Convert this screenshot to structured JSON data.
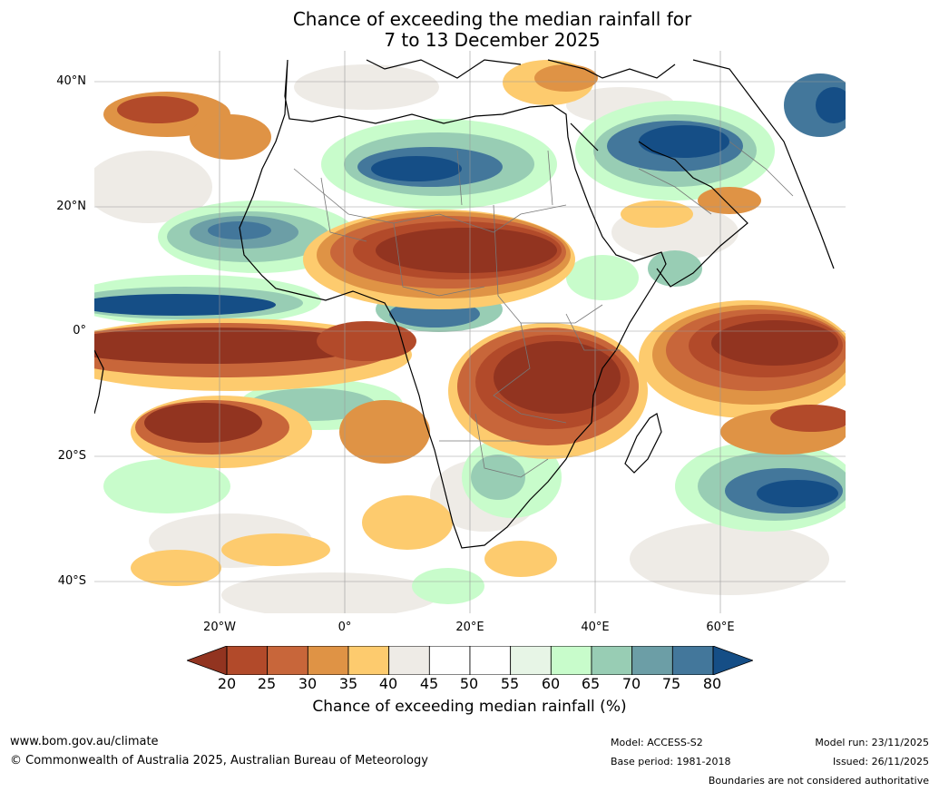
{
  "title": {
    "line1": "Chance of exceeding the median rainfall for",
    "line2": "7 to 13 December 2025"
  },
  "map": {
    "region": "Africa",
    "lat_ticks": [
      "40°N",
      "20°N",
      "0°",
      "20°S",
      "40°S"
    ],
    "lon_ticks": [
      "20°W",
      "0°",
      "20°E",
      "40°E",
      "60°E"
    ],
    "palette": [
      "#923420",
      "#b24a2a",
      "#c8663a",
      "#df9345",
      "#fdcb6e",
      "#eeebe6",
      "#ffffff",
      "#ffffff",
      "#e7f5e6",
      "#c8fccb",
      "#98cdb4",
      "#6c9ea6",
      "#43779b",
      "#154e86"
    ],
    "land_color": "#ffffff",
    "coast_color": "#000000",
    "border_color": "#777777"
  },
  "colorbar": {
    "ticks": [
      "20",
      "25",
      "30",
      "35",
      "40",
      "45",
      "50",
      "55",
      "60",
      "65",
      "70",
      "75",
      "80"
    ],
    "label": "Chance of exceeding median rainfall (%)"
  },
  "footer": {
    "website": "www.bom.gov.au/climate",
    "copyright": "© Commonwealth of Australia 2025, Australian Bureau of Meteorology",
    "model": "Model: ACCESS-S2",
    "base_period": "Base period: 1981-2018",
    "model_run": "Model run: 23/11/2025",
    "issued": "Issued: 26/11/2025",
    "disclaimer": "Boundaries are not considered authoritative"
  }
}
